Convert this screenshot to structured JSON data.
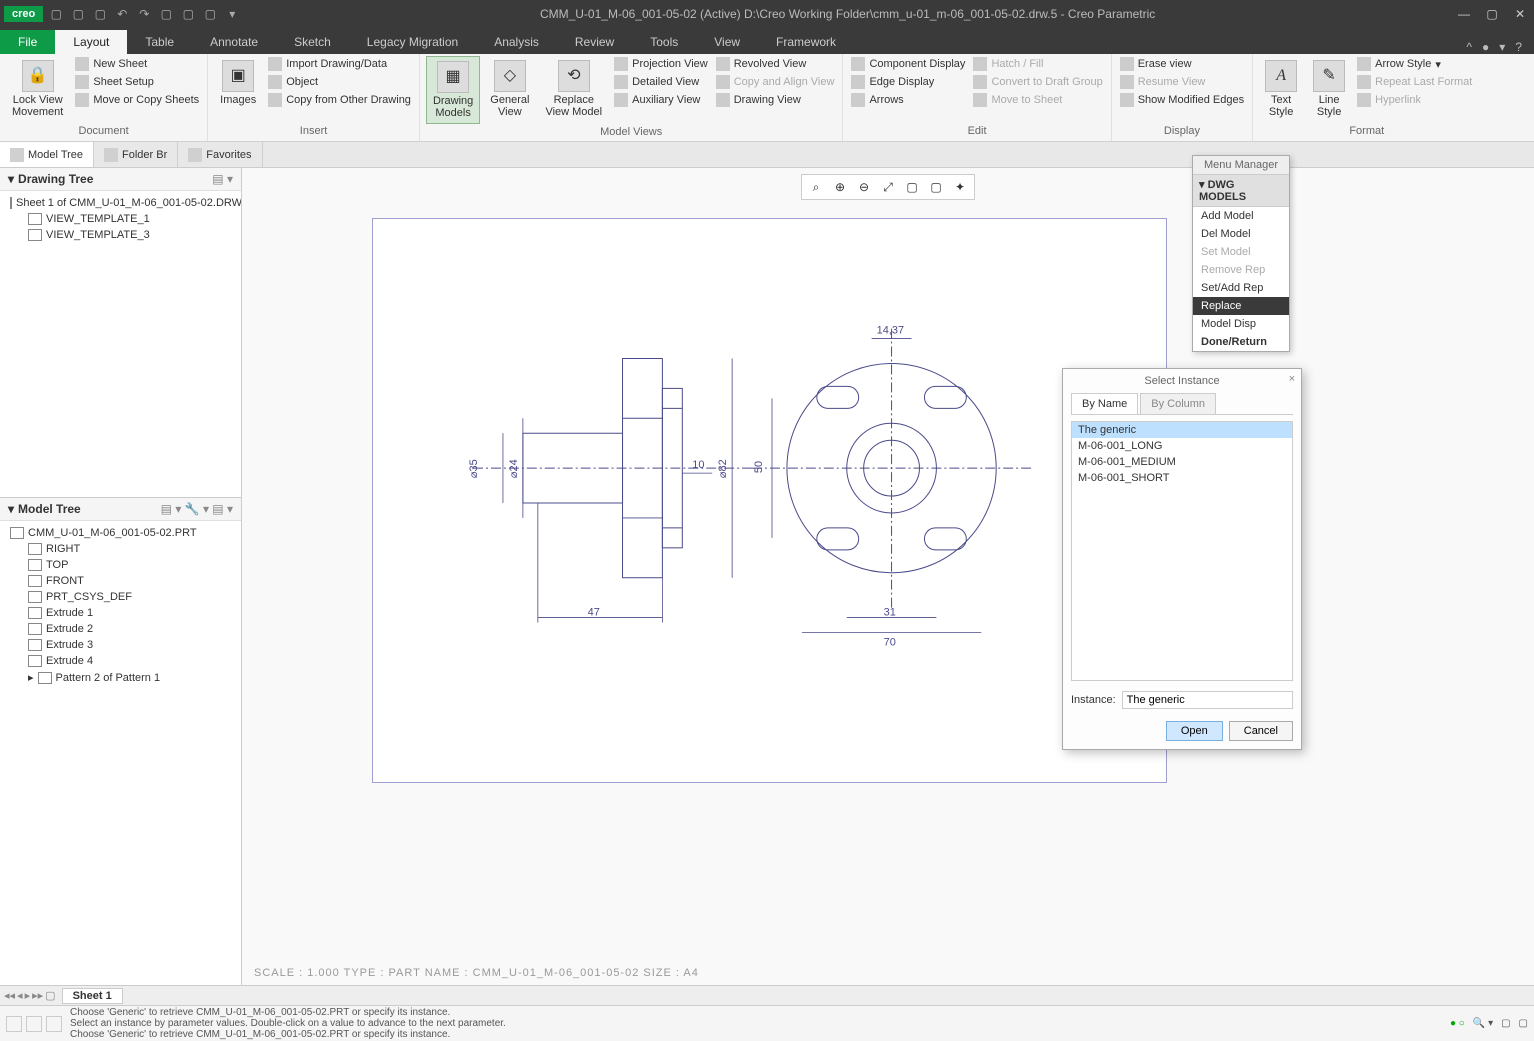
{
  "app": {
    "logo": "creo",
    "title": "CMM_U-01_M-06_001-05-02 (Active) D:\\Creo Working Folder\\cmm_u-01_m-06_001-05-02.drw.5 - Creo Parametric"
  },
  "tabs": {
    "file": "File",
    "items": [
      "Layout",
      "Table",
      "Annotate",
      "Sketch",
      "Legacy Migration",
      "Analysis",
      "Review",
      "Tools",
      "View",
      "Framework"
    ],
    "active": "Layout"
  },
  "ribbon": {
    "document": {
      "label": "Document",
      "lock": "Lock View\nMovement",
      "new_sheet": "New Sheet",
      "sheet_setup": "Sheet Setup",
      "move_copy": "Move or Copy Sheets"
    },
    "insert": {
      "label": "Insert",
      "images": "Images",
      "import": "Import Drawing/Data",
      "object": "Object",
      "copy_other": "Copy from Other Drawing"
    },
    "model_views": {
      "label": "Model Views",
      "drawing_models": "Drawing\nModels",
      "general_view": "General\nView",
      "replace_view": "Replace\nView Model",
      "projection": "Projection View",
      "detailed": "Detailed View",
      "auxiliary": "Auxiliary View",
      "revolved": "Revolved View",
      "copy_align": "Copy and Align View",
      "drawing_view": "Drawing View"
    },
    "edit": {
      "label": "Edit",
      "component": "Component Display",
      "edge": "Edge Display",
      "arrows": "Arrows",
      "hatch": "Hatch / Fill",
      "convert": "Convert to Draft Group",
      "move_sheet": "Move to Sheet"
    },
    "display": {
      "label": "Display",
      "erase": "Erase view",
      "resume": "Resume View",
      "show_mod": "Show Modified Edges"
    },
    "format": {
      "label": "Format",
      "text_style": "Text\nStyle",
      "line_style": "Line\nStyle",
      "arrow_style": "Arrow Style",
      "repeat_last": "Repeat Last Format",
      "hyperlink": "Hyperlink"
    }
  },
  "sidetabs": {
    "model_tree": "Model Tree",
    "folder": "Folder Br",
    "favorites": "Favorites"
  },
  "drawing_tree": {
    "header": "Drawing Tree",
    "root": "Sheet 1 of CMM_U-01_M-06_001-05-02.DRW",
    "items": [
      "VIEW_TEMPLATE_1",
      "VIEW_TEMPLATE_3"
    ]
  },
  "model_tree": {
    "header": "Model Tree",
    "root": "CMM_U-01_M-06_001-05-02.PRT",
    "items": [
      "RIGHT",
      "TOP",
      "FRONT",
      "PRT_CSYS_DEF",
      "Extrude 1",
      "Extrude 2",
      "Extrude 3",
      "Extrude 4",
      "Pattern 2 of Pattern 1"
    ]
  },
  "dimensions": {
    "d35": "⌀35",
    "d24": "⌀24",
    "d82": "⌀82",
    "v10": "10",
    "v47": "47",
    "v14_37": "14,37",
    "v50": "50",
    "v31": "31",
    "v70": "70"
  },
  "scale_line": "SCALE : 1.000    TYPE : PART    NAME : CMM_U-01_M-06_001-05-02    SIZE : A4",
  "sheet": "Sheet 1",
  "status": {
    "m1": "Choose 'Generic' to retrieve CMM_U-01_M-06_001-05-02.PRT or specify its instance.",
    "m2": "Select an instance by parameter values. Double-click on a value to advance to the next parameter.",
    "m3": "Choose 'Generic' to retrieve CMM_U-01_M-06_001-05-02.PRT or specify its instance."
  },
  "menu_mgr": {
    "title": "Menu Manager",
    "head": "DWG MODELS",
    "items": [
      {
        "t": "Add Model",
        "d": false
      },
      {
        "t": "Del Model",
        "d": false
      },
      {
        "t": "Set Model",
        "d": true
      },
      {
        "t": "Remove Rep",
        "d": true
      },
      {
        "t": "Set/Add Rep",
        "d": false
      },
      {
        "t": "Replace",
        "d": false,
        "sel": true
      },
      {
        "t": "Model Disp",
        "d": false
      },
      {
        "t": "Done/Return",
        "d": false,
        "bold": true
      }
    ]
  },
  "dialog": {
    "title": "Select Instance",
    "tab_name": "By Name",
    "tab_col": "By Column",
    "items": [
      "The generic",
      "M-06-001_LONG",
      "M-06-001_MEDIUM",
      "M-06-001_SHORT"
    ],
    "instance_label": "Instance:",
    "instance_value": "The generic",
    "open": "Open",
    "cancel": "Cancel"
  }
}
